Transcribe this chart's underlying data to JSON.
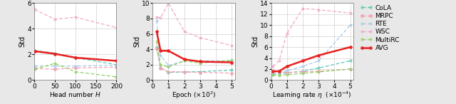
{
  "plot1": {
    "xlabel": "Head number $H$",
    "ylabel": "Std",
    "xlim": [
      0,
      200
    ],
    "ylim": [
      0,
      6
    ],
    "yticks": [
      0,
      2,
      4,
      6
    ],
    "xticks": [
      0,
      50,
      100,
      150,
      200
    ],
    "x": [
      1,
      50,
      100,
      200
    ],
    "CoLA": [
      2.3,
      2.1,
      1.75,
      1.2
    ],
    "MRPC": [
      0.9,
      0.85,
      0.95,
      1.0
    ],
    "RTE": [
      1.1,
      1.1,
      1.1,
      1.15
    ],
    "WSC": [
      5.5,
      4.75,
      4.9,
      4.1
    ],
    "MultiRC": [
      0.85,
      1.3,
      0.65,
      0.25
    ],
    "AVG": [
      2.25,
      2.05,
      1.75,
      1.5
    ]
  },
  "plot2": {
    "xlabel": "Epoch ($\\times 10^2$)",
    "ylabel": "Std",
    "xlim": [
      0,
      5.2
    ],
    "ylim": [
      0,
      10
    ],
    "yticks": [
      0,
      2,
      4,
      6,
      8,
      10
    ],
    "xticks": [
      0,
      1,
      2,
      3,
      4,
      5
    ],
    "x": [
      0.25,
      0.5,
      1,
      2,
      3,
      5
    ],
    "CoLA": [
      4.3,
      1.6,
      1.0,
      1.05,
      1.1,
      1.3
    ],
    "MRPC": [
      4.1,
      1.5,
      1.1,
      1.05,
      1.0,
      0.9
    ],
    "RTE": [
      7.7,
      3.2,
      1.9,
      2.5,
      2.5,
      2.5
    ],
    "WSC": [
      8.2,
      8.1,
      10.0,
      6.3,
      5.5,
      4.5
    ],
    "MultiRC": [
      5.0,
      2.0,
      1.7,
      2.5,
      2.2,
      2.6
    ],
    "AVG": [
      6.3,
      3.8,
      3.8,
      2.7,
      2.4,
      2.3
    ]
  },
  "plot3": {
    "xlabel": "Learning rate $\\eta$  ($\\times 10^{-4}$)",
    "ylabel": "Std",
    "xlim": [
      0,
      5.2
    ],
    "ylim": [
      0,
      14
    ],
    "yticks": [
      0,
      2,
      4,
      6,
      8,
      10,
      12,
      14
    ],
    "xticks": [
      0,
      1,
      2,
      3,
      4,
      5
    ],
    "x": [
      0.1,
      0.5,
      1,
      2,
      3,
      5
    ],
    "CoLA": [
      1.0,
      1.2,
      1.3,
      1.6,
      2.2,
      3.5
    ],
    "MRPC": [
      1.6,
      1.5,
      1.4,
      1.5,
      1.6,
      2.0
    ],
    "RTE": [
      1.5,
      1.5,
      1.7,
      2.5,
      3.5,
      10.0
    ],
    "WSC": [
      2.5,
      3.5,
      8.5,
      13.0,
      12.8,
      12.2
    ],
    "MultiRC": [
      1.0,
      0.8,
      1.0,
      1.2,
      1.5,
      2.0
    ],
    "AVG": [
      1.6,
      1.6,
      2.5,
      3.5,
      4.5,
      6.0
    ]
  },
  "series": {
    "CoLA": {
      "color": "#56c8b4",
      "linestyle": "dashed",
      "marker": "o",
      "ms": 2.0,
      "lw": 0.9,
      "mfc": "none",
      "dashes": [
        4,
        2
      ]
    },
    "MRPC": {
      "color": "#f4a0b0",
      "linestyle": "dashed",
      "marker": "*",
      "ms": 3.5,
      "lw": 0.9,
      "mfc": "none",
      "dashes": [
        4,
        2
      ]
    },
    "RTE": {
      "color": "#a8c8e8",
      "linestyle": "dashed",
      "marker": "o",
      "ms": 2.0,
      "lw": 0.9,
      "mfc": "none",
      "dashes": [
        4,
        2
      ]
    },
    "WSC": {
      "color": "#f0a8c8",
      "linestyle": "dashed",
      "marker": "o",
      "ms": 2.0,
      "lw": 0.9,
      "mfc": "none",
      "dashes": [
        4,
        2
      ]
    },
    "MultiRC": {
      "color": "#90d060",
      "linestyle": "dashed",
      "marker": "o",
      "ms": 2.0,
      "lw": 0.9,
      "mfc": "none",
      "dashes": [
        4,
        2
      ]
    },
    "AVG": {
      "color": "#e82020",
      "linestyle": "solid",
      "marker": "o",
      "ms": 2.5,
      "lw": 1.8,
      "mfc": "#e82020",
      "dashes": [
        1,
        0
      ]
    }
  },
  "datasets_order": [
    "CoLA",
    "MRPC",
    "RTE",
    "WSC",
    "MultiRC",
    "AVG"
  ],
  "fig_facecolor": "#e8e8e8",
  "axes_facecolor": "#ffffff"
}
